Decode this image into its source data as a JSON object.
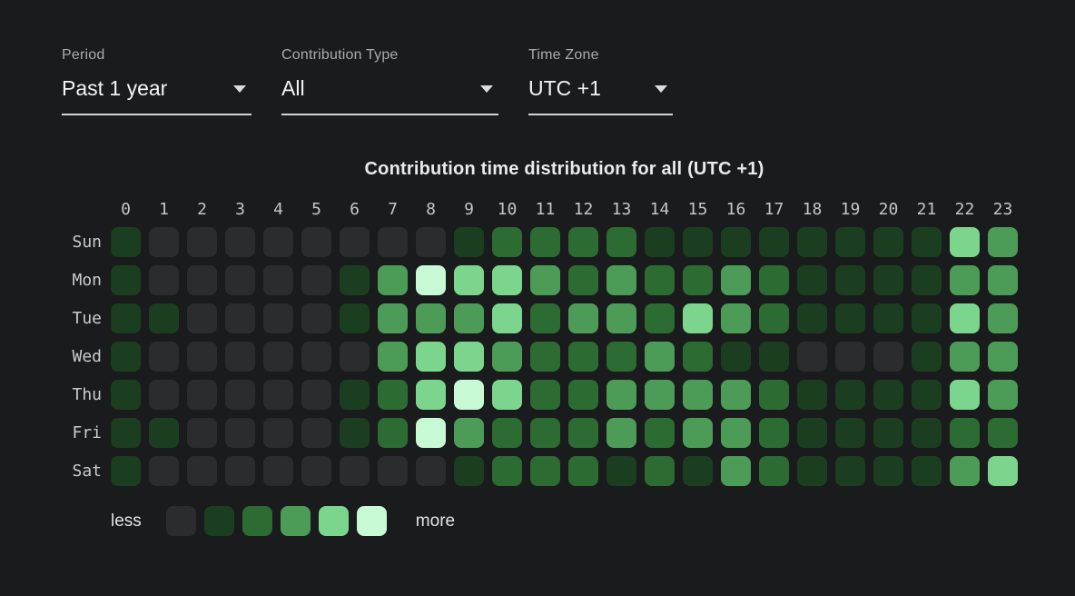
{
  "filters": [
    {
      "label": "Period",
      "value": "Past 1 year"
    },
    {
      "label": "Contribution Type",
      "value": "All"
    },
    {
      "label": "Time Zone",
      "value": "UTC +1"
    }
  ],
  "chart_data": {
    "type": "heatmap",
    "title": "Contribution time distribution for all (UTC +1)",
    "x_labels": [
      "0",
      "1",
      "2",
      "3",
      "4",
      "5",
      "6",
      "7",
      "8",
      "9",
      "10",
      "11",
      "12",
      "13",
      "14",
      "15",
      "16",
      "17",
      "18",
      "19",
      "20",
      "21",
      "22",
      "23"
    ],
    "y_labels": [
      "Sun",
      "Mon",
      "Tue",
      "Wed",
      "Thu",
      "Fri",
      "Sat"
    ],
    "legend": {
      "less_label": "less",
      "more_label": "more",
      "level_colors": [
        "#2b2c2e",
        "#1c3e20",
        "#2c6b31",
        "#4c9c57",
        "#7cd58d",
        "#c8f9d5"
      ]
    },
    "values": [
      [
        1,
        0,
        0,
        0,
        0,
        0,
        0,
        0,
        0,
        1,
        2,
        2,
        2,
        2,
        1,
        1,
        1,
        1,
        1,
        1,
        1,
        1,
        4,
        3
      ],
      [
        1,
        0,
        0,
        0,
        0,
        0,
        1,
        3,
        5,
        4,
        4,
        3,
        2,
        3,
        2,
        2,
        3,
        2,
        1,
        1,
        1,
        1,
        3,
        3
      ],
      [
        1,
        1,
        0,
        0,
        0,
        0,
        1,
        3,
        3,
        3,
        4,
        2,
        3,
        3,
        2,
        4,
        3,
        2,
        1,
        1,
        1,
        1,
        4,
        3
      ],
      [
        1,
        0,
        0,
        0,
        0,
        0,
        0,
        3,
        4,
        4,
        3,
        2,
        2,
        2,
        3,
        2,
        1,
        1,
        0,
        0,
        0,
        1,
        3,
        3
      ],
      [
        1,
        0,
        0,
        0,
        0,
        0,
        1,
        2,
        4,
        5,
        4,
        2,
        2,
        3,
        3,
        3,
        3,
        2,
        1,
        1,
        1,
        1,
        4,
        3
      ],
      [
        1,
        1,
        0,
        0,
        0,
        0,
        1,
        2,
        5,
        3,
        2,
        2,
        2,
        3,
        2,
        3,
        3,
        2,
        1,
        1,
        1,
        1,
        2,
        2
      ],
      [
        1,
        0,
        0,
        0,
        0,
        0,
        0,
        0,
        0,
        1,
        2,
        2,
        2,
        1,
        2,
        1,
        3,
        2,
        1,
        1,
        1,
        1,
        3,
        4
      ]
    ]
  }
}
